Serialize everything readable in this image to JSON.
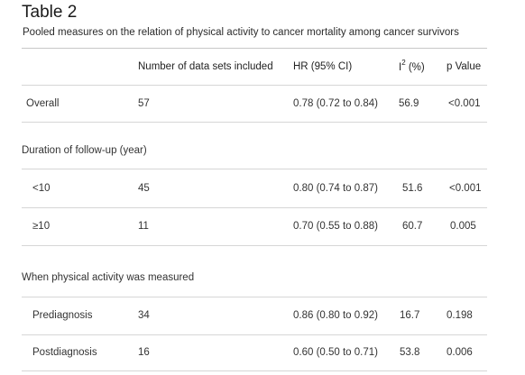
{
  "table": {
    "title": "Table 2",
    "caption": "Pooled measures on the relation of physical activity to cancer mortality among cancer survivors",
    "headers": {
      "datasets": "Number of data sets included",
      "hr": "HR (95% CI)",
      "i2_base": "I",
      "i2_sup": "2",
      "i2_unit": " (%)",
      "p": "p Value"
    },
    "overall": {
      "label": "Overall",
      "n": "57",
      "hr": "0.78 (0.72 to 0.84)",
      "i2": "56.9",
      "p": "<0.001"
    },
    "section_followup": "Duration of follow-up (year)",
    "followup_lt10": {
      "label": "<10",
      "n": "45",
      "hr": "0.80 (0.74 to 0.87)",
      "i2": "51.6",
      "p": "<0.001"
    },
    "followup_ge10": {
      "label": "≥10",
      "n": "11",
      "hr": "0.70 (0.55 to 0.88)",
      "i2": "60.7",
      "p": "0.005"
    },
    "section_timing": "When physical activity was measured",
    "prediagnosis": {
      "label": "Prediagnosis",
      "n": "34",
      "hr": "0.86 (0.80 to 0.92)",
      "i2": "16.7",
      "p": "0.198"
    },
    "postdiagnosis": {
      "label": "Postdiagnosis",
      "n": "16",
      "hr": "0.60 (0.50 to 0.71)",
      "i2": "53.8",
      "p": "0.006"
    }
  }
}
